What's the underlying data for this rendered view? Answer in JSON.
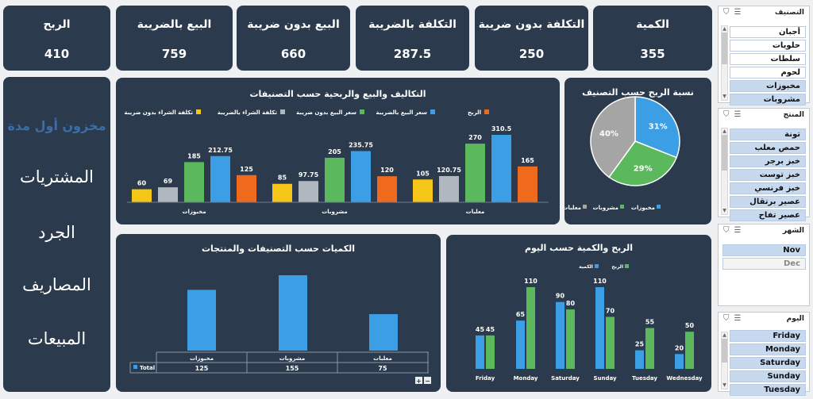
{
  "kpis": [
    {
      "label": "الربح",
      "value": "410"
    },
    {
      "label": "البيع بالضريبة",
      "value": "759"
    },
    {
      "label": "البيع بدون ضريبة",
      "value": "660"
    },
    {
      "label": "التكلفة بالضريبة",
      "value": "287.5"
    },
    {
      "label": "التكلفة بدون ضريبة",
      "value": "250"
    },
    {
      "label": "الكمية",
      "value": "355"
    }
  ],
  "nav": {
    "title": "مخزون أول مدة",
    "items": [
      "المشتريات",
      "الجرد",
      "المصاريف",
      "المبيعات"
    ]
  },
  "colors": {
    "cost_no_tax": "#f5c518",
    "cost_tax": "#b0b7bf",
    "sale_no_tax": "#5cb85c",
    "sale_tax": "#3c9ee5",
    "profit": "#f06a1e"
  },
  "chart_main": {
    "title": "التكاليف والبيع والربحية حسب التصنيفات",
    "legend": [
      "تكلفة الشراء بدون ضريبة",
      "تكلفة الشراء بالضريبة",
      "سعر البيع بدون ضريبة",
      "سعر البيع بالضريبة",
      "الربح"
    ],
    "categories": [
      "مخبوزات",
      "مشروبات",
      "معلبات"
    ],
    "series": [
      {
        "name": "تكلفة الشراء بدون ضريبة",
        "values": [
          60,
          85,
          105
        ]
      },
      {
        "name": "تكلفة الشراء بالضريبة",
        "values": [
          69,
          97.75,
          120.75
        ]
      },
      {
        "name": "سعر البيع بدون ضريبة",
        "values": [
          185,
          205,
          270
        ]
      },
      {
        "name": "سعر البيع بالضريبة",
        "values": [
          212.75,
          235.75,
          310.5
        ]
      },
      {
        "name": "الربح",
        "values": [
          125,
          120,
          165
        ]
      }
    ]
  },
  "chart_pie": {
    "title": "نسبة الربح حسب التصنيف",
    "slices": [
      {
        "name": "مخبوزات",
        "value": 31,
        "label": "31%",
        "color": "#3c9ee5"
      },
      {
        "name": "مشروبات",
        "value": 29,
        "label": "29%",
        "color": "#5cb85c"
      },
      {
        "name": "معلبات",
        "value": 40,
        "label": "40%",
        "color": "#a5a5a5"
      }
    ]
  },
  "chart_qty": {
    "title": "الكميات حسب التصنيفات والمنتجات",
    "categories": [
      "مخبوزات",
      "مشروبات",
      "معلبات"
    ],
    "values": [
      125,
      155,
      75
    ],
    "series_name": "Total"
  },
  "chart_day": {
    "title": "الربح والكمية حسب اليوم",
    "legend": [
      "الكمية",
      "الربح"
    ],
    "days": [
      "Friday",
      "Monday",
      "Saturday",
      "Sunday",
      "Tuesday",
      "Wednesday"
    ],
    "series": [
      {
        "name": "الكمية",
        "values": [
          45,
          65,
          90,
          110,
          25,
          20
        ]
      },
      {
        "name": "الربح",
        "values": [
          45,
          110,
          80,
          70,
          55,
          50
        ]
      }
    ]
  },
  "slicers": {
    "category": {
      "title": "التصنيف",
      "items": [
        "أجبان",
        "حلويات",
        "سلطات",
        "لحوم",
        "مخبوزات",
        "مشروبات"
      ]
    },
    "product": {
      "title": "المنتج",
      "items": [
        "تونة",
        "حمص معلب",
        "خبز برجر",
        "خبز توست",
        "خبز فرنسي",
        "عصير برتقال",
        "عصير تفاح"
      ]
    },
    "month": {
      "title": "الشهر",
      "items": [
        "Nov",
        "Dec"
      ]
    },
    "day": {
      "title": "اليوم",
      "items": [
        "Friday",
        "Monday",
        "Saturday",
        "Sunday",
        "Tuesday"
      ]
    }
  }
}
